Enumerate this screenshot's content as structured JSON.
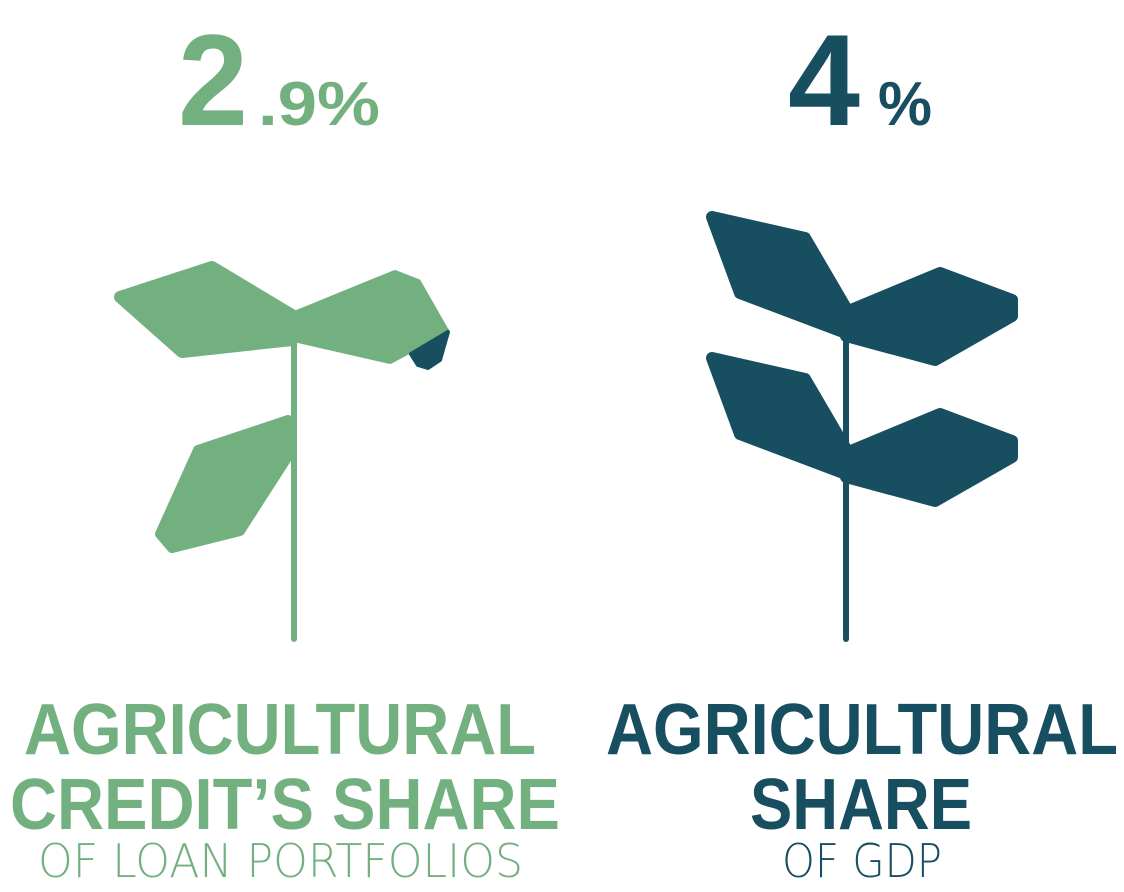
{
  "colors": {
    "green": "#73B07F",
    "teal": "#174E60"
  },
  "left": {
    "value_major": "2",
    "value_minor": ".9%",
    "title_line1": "AGRICULTURAL",
    "title_line2": "CREDIT’S SHARE",
    "subtitle": "OF LOAN PORTFOLIOS",
    "icon": "sprout-icon"
  },
  "right": {
    "value_major": "4",
    "value_minor": "%",
    "title_line1": "AGRICULTURAL",
    "title_line2": "SHARE",
    "subtitle": "OF GDP",
    "icon": "plant-icon"
  }
}
